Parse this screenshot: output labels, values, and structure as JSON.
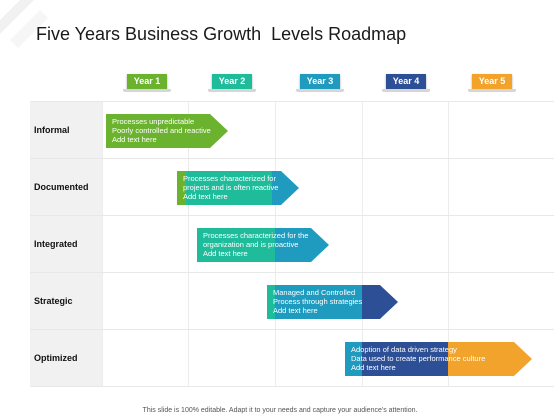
{
  "title": "Five Years Business Growth  Levels Roadmap",
  "years": [
    {
      "label": "Year 1",
      "color": "#6bb32e"
    },
    {
      "label": "Year 2",
      "color": "#1fbc9c"
    },
    {
      "label": "Year 3",
      "color": "#1e9bbf"
    },
    {
      "label": "Year 4",
      "color": "#2d4f96"
    },
    {
      "label": "Year 5",
      "color": "#f2a32b"
    }
  ],
  "rows": [
    {
      "label": "Informal",
      "lines": [
        "Processes unpredictable",
        "Poorly controlled and reactive",
        "Add text here"
      ]
    },
    {
      "label": "Documented",
      "lines": [
        "Processes characterized for",
        "projects and is often reactive",
        "Add text here"
      ]
    },
    {
      "label": "Integrated",
      "lines": [
        "Processes characterized for the",
        "organization and is proactive",
        "Add text here"
      ]
    },
    {
      "label": "Strategic",
      "lines": [
        "Managed and Controlled",
        "Process through strategies",
        "Add text here"
      ]
    },
    {
      "label": "Optimized",
      "lines": [
        "Adoption of data driven strategy",
        "Data used to create performance culture",
        "Add text here"
      ]
    }
  ],
  "footer": "This slide is 100% editable. Adapt it to your needs and capture your audience's attention."
}
